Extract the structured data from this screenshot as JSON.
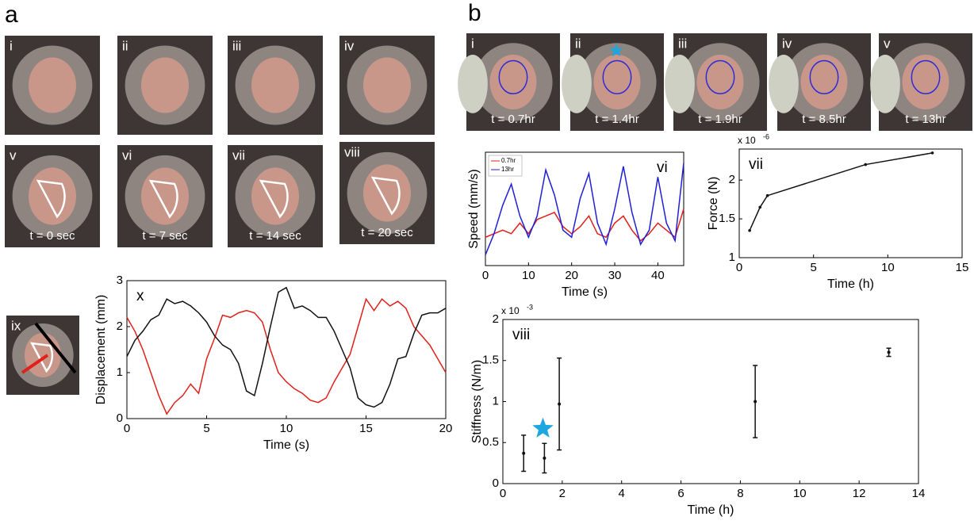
{
  "panel_labels": [
    "a",
    "b"
  ],
  "photos_a": [
    {
      "label": "i"
    },
    {
      "label": "ii"
    },
    {
      "label": "iii"
    },
    {
      "label": "iv"
    },
    {
      "label": "v",
      "caption": "t = 0 sec"
    },
    {
      "label": "vi",
      "caption": "t = 7 sec"
    },
    {
      "label": "vii",
      "caption": "t = 14 sec"
    },
    {
      "label": "viii",
      "caption": "t = 20 sec"
    },
    {
      "label": "ix"
    }
  ],
  "photos_b": [
    {
      "label": "i",
      "caption": "t = 0.7hr"
    },
    {
      "label": "ii",
      "caption": "t = 1.4hr"
    },
    {
      "label": "iii",
      "caption": "t = 1.9hr"
    },
    {
      "label": "iv",
      "caption": "t = 8.5hr"
    },
    {
      "label": "v",
      "caption": "t = 13hr"
    }
  ],
  "chart_data": [
    {
      "type": "line",
      "label": "x",
      "x_label": "Time (s)",
      "y_label": "Displacement (mm)",
      "xlim": [
        0,
        20
      ],
      "ylim": [
        0,
        3
      ],
      "xticks": [
        0,
        5,
        10,
        15,
        20
      ],
      "yticks": [
        0,
        1,
        2,
        3
      ],
      "x": [
        0,
        0.5,
        1,
        1.5,
        2,
        2.5,
        3,
        3.5,
        4,
        4.5,
        5,
        5.5,
        6,
        6.5,
        7,
        7.5,
        8,
        8.5,
        9,
        9.5,
        10,
        10.5,
        11,
        11.5,
        12,
        12.5,
        13,
        13.5,
        14,
        14.5,
        15,
        15.5,
        16,
        16.5,
        17,
        17.5,
        18,
        18.5,
        19,
        19.5,
        20
      ],
      "series": [
        {
          "color": "#e0201b",
          "values": [
            2.2,
            1.9,
            1.5,
            1.0,
            0.5,
            0.1,
            0.35,
            0.5,
            0.75,
            0.55,
            1.3,
            1.75,
            2.25,
            2.2,
            2.3,
            2.35,
            2.3,
            2.1,
            1.5,
            1.0,
            0.8,
            0.65,
            0.55,
            0.4,
            0.35,
            0.45,
            0.8,
            1.1,
            1.4,
            2.0,
            2.6,
            2.35,
            2.6,
            2.45,
            2.55,
            2.4,
            2.0,
            1.8,
            1.6,
            1.3,
            1.0
          ]
        },
        {
          "color": "#111111",
          "values": [
            1.35,
            1.7,
            1.9,
            2.15,
            2.25,
            2.6,
            2.5,
            2.55,
            2.45,
            2.3,
            2.1,
            1.8,
            1.6,
            1.5,
            1.2,
            0.6,
            0.5,
            1.2,
            2.0,
            2.75,
            2.85,
            2.4,
            2.45,
            2.35,
            2.2,
            2.2,
            1.9,
            1.5,
            1.1,
            0.45,
            0.3,
            0.25,
            0.35,
            0.75,
            1.3,
            1.35,
            1.85,
            2.25,
            2.3,
            2.3,
            2.4
          ]
        }
      ]
    },
    {
      "type": "line",
      "label": "vi",
      "x_label": "Time (s)",
      "y_label": "Speed (mm/s)",
      "xlim": [
        0,
        46
      ],
      "ylim": [
        0,
        3.2
      ],
      "xticks": [
        0,
        10,
        20,
        30,
        40
      ],
      "legend": "upper left",
      "x": [
        0,
        2,
        4,
        6,
        8,
        10,
        12,
        14,
        16,
        18,
        20,
        22,
        24,
        26,
        28,
        30,
        32,
        34,
        36,
        38,
        40,
        42,
        44,
        46
      ],
      "series": [
        {
          "name": "0.7hr",
          "color": "#e0201b",
          "values": [
            0.8,
            0.9,
            1.0,
            0.9,
            1.2,
            0.9,
            1.3,
            1.4,
            1.5,
            1.1,
            0.9,
            1.1,
            1.4,
            0.9,
            0.8,
            1.2,
            1.4,
            1.0,
            0.7,
            0.9,
            1.2,
            1.0,
            0.8,
            1.6
          ]
        },
        {
          "name": "13hr",
          "color": "#1f1fd8",
          "values": [
            0.3,
            0.9,
            1.7,
            2.3,
            1.4,
            0.8,
            1.4,
            2.7,
            2.0,
            1.0,
            0.8,
            1.9,
            2.6,
            1.2,
            0.6,
            1.6,
            2.8,
            1.5,
            0.6,
            1.0,
            2.5,
            1.2,
            0.7,
            2.9
          ]
        }
      ]
    },
    {
      "type": "line",
      "label": "vii",
      "x_label": "Time (h)",
      "y_label": "Force (N)",
      "y_multiplier": {
        "base": "x 10",
        "exponent": "-6"
      },
      "xlim": [
        0,
        15
      ],
      "ylim": [
        1,
        2.4
      ],
      "xticks": [
        0,
        5,
        10,
        15
      ],
      "yticks": [
        1,
        1.5,
        2
      ],
      "x": [
        0.7,
        1.4,
        1.9,
        8.5,
        13
      ],
      "series": [
        {
          "color": "#111111",
          "markers": true,
          "values": [
            1.35,
            1.65,
            1.8,
            2.2,
            2.35
          ]
        }
      ]
    },
    {
      "type": "errorbar",
      "label": "viii",
      "x_label": "Time (h)",
      "y_label": "Stiffness (N/m)",
      "y_multiplier": {
        "base": "x 10",
        "exponent": "-3"
      },
      "xlim": [
        0,
        14
      ],
      "ylim": [
        0,
        2
      ],
      "xticks": [
        0,
        2,
        4,
        6,
        8,
        10,
        12,
        14
      ],
      "yticks": [
        0,
        0.5,
        1,
        1.5,
        2
      ],
      "x": [
        0.7,
        1.4,
        1.9,
        8.5,
        13
      ],
      "values": [
        0.37,
        0.31,
        0.97,
        1.0,
        1.6
      ],
      "errors": [
        0.22,
        0.18,
        0.56,
        0.44,
        0.05
      ],
      "color": "#111111",
      "annotation": {
        "x": 1.35,
        "y": 0.67,
        "color": "#1ea6e0"
      }
    }
  ]
}
